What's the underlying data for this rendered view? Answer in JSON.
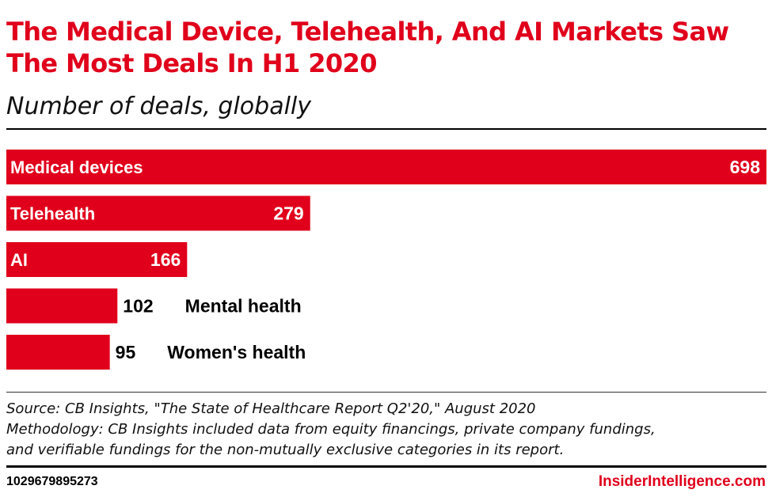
{
  "header": {
    "title": "The Medical Device, Telehealth, And AI Markets Saw The Most Deals In H1 2020",
    "subtitle": "Number of deals, globally"
  },
  "chart_data": {
    "type": "bar",
    "orientation": "horizontal",
    "title": "The Medical Device, Telehealth, And AI Markets Saw The Most Deals In H1 2020",
    "subtitle": "Number of deals, globally",
    "categories": [
      "Medical devices",
      "Telehealth",
      "AI",
      "Mental health",
      "Women's health"
    ],
    "values": [
      698,
      279,
      166,
      102,
      95
    ],
    "bar_color": "#e0001b",
    "xlim": [
      0,
      698
    ],
    "grid": false,
    "legend": "none"
  },
  "notes": {
    "source": "Source: CB Insights, \"The State of Healthcare Report Q2'20,\" August 2020",
    "methodology_line1": "Methodology: CB Insights included data from equity financings, private company fundings,",
    "methodology_line2": "and verifiable fundings for the non-mutually exclusive categories in its report."
  },
  "footer": {
    "chart_id": "1029679895273",
    "brand": "InsiderIntelligence.com"
  }
}
